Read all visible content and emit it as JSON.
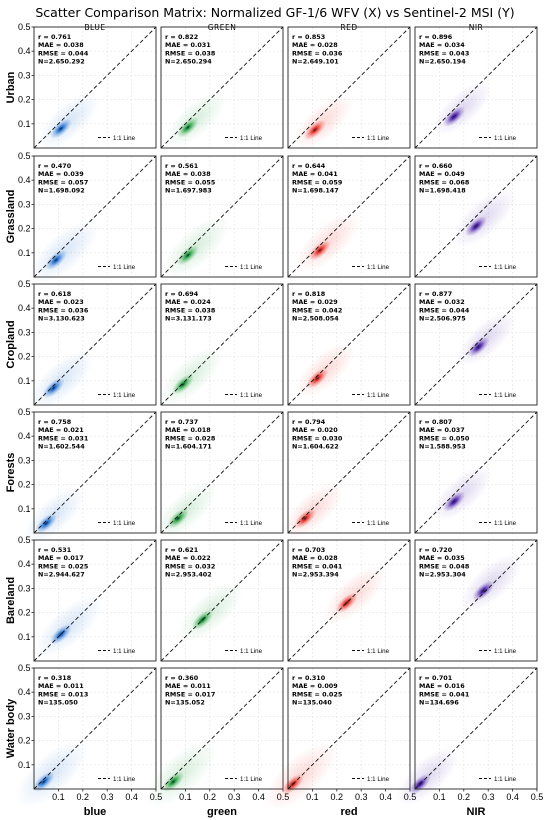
{
  "title": "Scatter Comparison Matrix: Normalized GF-1/6 WFV (X) vs Sentinel-2 MSI (Y)",
  "columns": [
    {
      "header": "BLUE",
      "xlabel": "blue",
      "color": "#1f6fd1"
    },
    {
      "header": "GREEN",
      "xlabel": "green",
      "color": "#1f9e3a"
    },
    {
      "header": "RED",
      "xlabel": "red",
      "color": "#e8281e"
    },
    {
      "header": "NIR",
      "xlabel": "NIR",
      "color": "#4a1fa8"
    }
  ],
  "rows": [
    "Urban",
    "Grassland",
    "Cropland",
    "Forests",
    "Bareland",
    "Water body"
  ],
  "legend_label": "1:1 Line",
  "chart_data": {
    "type": "scatter",
    "subtype": "density scatter matrix",
    "xlim": [
      0,
      0.5
    ],
    "ylim": [
      0,
      0.5
    ],
    "xticks": [
      "0.1",
      "0.2",
      "0.3",
      "0.4",
      "0.5"
    ],
    "yticks": [
      "0.1",
      "0.2",
      "0.3",
      "0.4",
      "0.5"
    ],
    "grid": true,
    "reference_line": "1:1",
    "legend_placement": "bottom-right",
    "panels": [
      [
        {
          "r": "0.761",
          "mae": "0.038",
          "rmse": "0.044",
          "n": "2.650.292",
          "center": [
            0.11,
            0.08
          ]
        },
        {
          "r": "0.822",
          "mae": "0.031",
          "rmse": "0.038",
          "n": "2.650.294",
          "center": [
            0.11,
            0.085
          ]
        },
        {
          "r": "0.853",
          "mae": "0.028",
          "rmse": "0.036",
          "n": "2.649.101",
          "center": [
            0.11,
            0.075
          ]
        },
        {
          "r": "0.896",
          "mae": "0.034",
          "rmse": "0.043",
          "n": "2.650.194",
          "center": [
            0.16,
            0.13
          ]
        }
      ],
      [
        {
          "r": "0.470",
          "mae": "0.039",
          "rmse": "0.057",
          "n": "1.698.092",
          "center": [
            0.09,
            0.07
          ]
        },
        {
          "r": "0.561",
          "mae": "0.038",
          "rmse": "0.055",
          "n": "1.697.983",
          "center": [
            0.11,
            0.09
          ]
        },
        {
          "r": "0.644",
          "mae": "0.041",
          "rmse": "0.059",
          "n": "1.698.147",
          "center": [
            0.13,
            0.11
          ]
        },
        {
          "r": "0.660",
          "mae": "0.049",
          "rmse": "0.068",
          "n": "1.698.418",
          "center": [
            0.25,
            0.21
          ]
        }
      ],
      [
        {
          "r": "0.618",
          "mae": "0.023",
          "rmse": "0.036",
          "n": "3.130.623",
          "center": [
            0.08,
            0.07
          ]
        },
        {
          "r": "0.694",
          "mae": "0.024",
          "rmse": "0.038",
          "n": "3.131.173",
          "center": [
            0.09,
            0.085
          ]
        },
        {
          "r": "0.818",
          "mae": "0.029",
          "rmse": "0.042",
          "n": "2.508.054",
          "center": [
            0.12,
            0.11
          ]
        },
        {
          "r": "0.877",
          "mae": "0.032",
          "rmse": "0.044",
          "n": "2.506.975",
          "center": [
            0.26,
            0.24
          ]
        }
      ],
      [
        {
          "r": "0.758",
          "mae": "0.021",
          "rmse": "0.031",
          "n": "1.602.544",
          "center": [
            0.05,
            0.04
          ]
        },
        {
          "r": "0.737",
          "mae": "0.018",
          "rmse": "0.028",
          "n": "1.604.171",
          "center": [
            0.07,
            0.06
          ]
        },
        {
          "r": "0.794",
          "mae": "0.020",
          "rmse": "0.030",
          "n": "1.604.622",
          "center": [
            0.07,
            0.06
          ]
        },
        {
          "r": "0.807",
          "mae": "0.037",
          "rmse": "0.050",
          "n": "1.588.953",
          "center": [
            0.16,
            0.13
          ]
        }
      ],
      [
        {
          "r": "0.531",
          "mae": "0.017",
          "rmse": "0.025",
          "n": "2.944.627",
          "center": [
            0.11,
            0.11
          ]
        },
        {
          "r": "0.621",
          "mae": "0.022",
          "rmse": "0.032",
          "n": "2.953.402",
          "center": [
            0.17,
            0.17
          ]
        },
        {
          "r": "0.703",
          "mae": "0.028",
          "rmse": "0.041",
          "n": "2.953.394",
          "center": [
            0.24,
            0.24
          ]
        },
        {
          "r": "0.720",
          "mae": "0.035",
          "rmse": "0.048",
          "n": "2.953.304",
          "center": [
            0.28,
            0.29
          ]
        }
      ],
      [
        {
          "r": "0.318",
          "mae": "0.011",
          "rmse": "0.013",
          "n": "135.050",
          "center": [
            0.04,
            0.03
          ]
        },
        {
          "r": "0.360",
          "mae": "0.011",
          "rmse": "0.017",
          "n": "135.052",
          "center": [
            0.05,
            0.03
          ]
        },
        {
          "r": "0.310",
          "mae": "0.009",
          "rmse": "0.025",
          "n": "135.040",
          "center": [
            0.02,
            0.02
          ]
        },
        {
          "r": "0.701",
          "mae": "0.016",
          "rmse": "0.041",
          "n": "134.696",
          "center": [
            0.02,
            0.02
          ]
        }
      ]
    ]
  }
}
